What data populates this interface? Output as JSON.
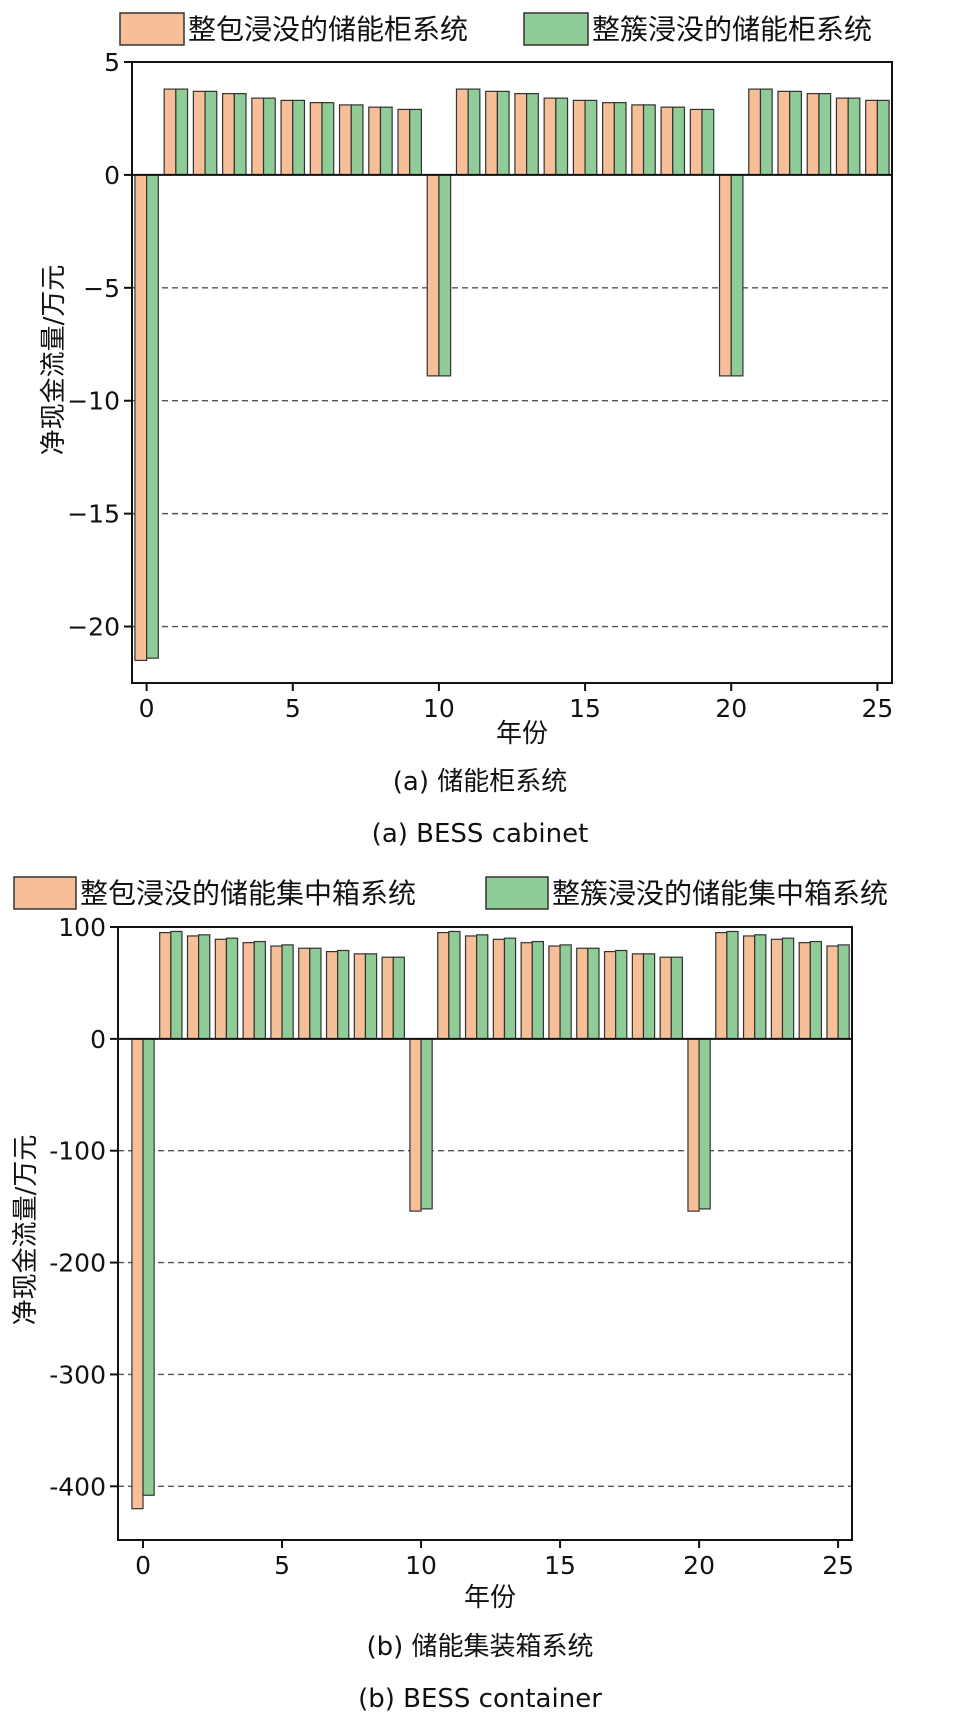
{
  "chart_data": [
    {
      "type": "bar",
      "xlabel": "年份",
      "ylabel": "净现金流量/万元",
      "caption_zh": "(a) 储能柜系统",
      "caption_en": "(a) BESS cabinet",
      "xlim": [
        -0.5,
        25.5
      ],
      "ylim": [
        -22.5,
        5
      ],
      "x_ticks": [
        0,
        5,
        10,
        15,
        20,
        25
      ],
      "y_ticks": [
        5,
        0,
        -5,
        -10,
        -15,
        -20
      ],
      "y_tick_labels": [
        "5",
        "0",
        "−5",
        "−10",
        "−15",
        "−20"
      ],
      "grid": "dashed horizontal",
      "legend": "top",
      "categories": [
        0,
        1,
        2,
        3,
        4,
        5,
        6,
        7,
        8,
        9,
        10,
        11,
        12,
        13,
        14,
        15,
        16,
        17,
        18,
        19,
        20,
        21,
        22,
        23,
        24,
        25
      ],
      "series": [
        {
          "name": "整包浸没的储能柜系统",
          "color": "#f7bf98",
          "values": [
            -21.5,
            3.8,
            3.7,
            3.6,
            3.4,
            3.3,
            3.2,
            3.1,
            3.0,
            2.9,
            -8.9,
            3.8,
            3.7,
            3.6,
            3.4,
            3.3,
            3.2,
            3.1,
            3.0,
            2.9,
            -8.9,
            3.8,
            3.7,
            3.6,
            3.4,
            3.3
          ]
        },
        {
          "name": "整簇浸没的储能柜系统",
          "color": "#8fcc98",
          "values": [
            -21.4,
            3.8,
            3.7,
            3.6,
            3.4,
            3.3,
            3.2,
            3.1,
            3.0,
            2.9,
            -8.9,
            3.8,
            3.7,
            3.6,
            3.4,
            3.3,
            3.2,
            3.1,
            3.0,
            2.9,
            -8.9,
            3.8,
            3.7,
            3.6,
            3.4,
            3.3
          ]
        }
      ]
    },
    {
      "type": "bar",
      "xlabel": "年份",
      "ylabel": "净现金流量/万元",
      "caption_zh": "(b) 储能集装箱系统",
      "caption_en": "(b) BESS container",
      "xlim": [
        -0.9,
        25.5
      ],
      "ylim": [
        -448,
        100
      ],
      "x_ticks": [
        0,
        5,
        10,
        15,
        20,
        25
      ],
      "y_ticks": [
        100,
        0,
        -100,
        -200,
        -300,
        -400
      ],
      "y_tick_labels": [
        "100",
        "0",
        "-100",
        "-200",
        "-300",
        "-400"
      ],
      "grid": "dashed horizontal",
      "legend": "top",
      "categories": [
        0,
        1,
        2,
        3,
        4,
        5,
        6,
        7,
        8,
        9,
        10,
        11,
        12,
        13,
        14,
        15,
        16,
        17,
        18,
        19,
        20,
        21,
        22,
        23,
        24,
        25
      ],
      "series": [
        {
          "name": "整包浸没的储能集中箱系统",
          "color": "#f7bf98",
          "values": [
            -420,
            95,
            92,
            89,
            86,
            83,
            81,
            78,
            76,
            73,
            -154,
            95,
            92,
            89,
            86,
            83,
            81,
            78,
            76,
            73,
            -154,
            95,
            92,
            89,
            86,
            83
          ]
        },
        {
          "name": "整簇浸没的储能集中箱系统",
          "color": "#8fcc98",
          "values": [
            -408,
            96,
            93,
            90,
            87,
            84,
            81,
            79,
            76,
            73,
            -152,
            96,
            93,
            90,
            87,
            84,
            81,
            79,
            76,
            73,
            -152,
            96,
            93,
            90,
            87,
            84
          ]
        }
      ]
    }
  ]
}
